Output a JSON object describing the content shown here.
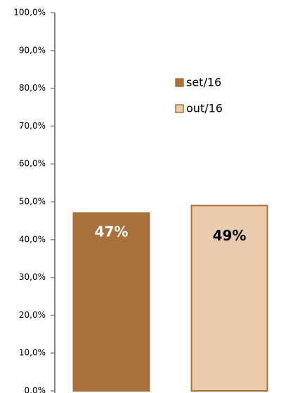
{
  "chart_data": {
    "type": "bar",
    "categories": [
      null
    ],
    "series": [
      {
        "name": "set/16",
        "color": "#a8703a",
        "edgecolor": "#a8703a",
        "label_color": "#ffffff",
        "values": [
          47
        ],
        "value_labels": [
          "47%"
        ]
      },
      {
        "name": "out/16",
        "color": "#eacbae",
        "edgecolor": "#a8703a",
        "label_color": "#000000",
        "values": [
          49
        ],
        "value_labels": [
          "49%"
        ]
      }
    ],
    "ylim": [
      0,
      100
    ],
    "yticks": [
      {
        "value": 0,
        "label": "0,0%"
      },
      {
        "value": 10,
        "label": "10,0%"
      },
      {
        "value": 20,
        "label": "20,0%"
      },
      {
        "value": 30,
        "label": "30,0%"
      },
      {
        "value": 40,
        "label": "40,0%"
      },
      {
        "value": 50,
        "label": "50,0%"
      },
      {
        "value": 60,
        "label": "60,0%"
      },
      {
        "value": 70,
        "label": "70,0%"
      },
      {
        "value": 80,
        "label": "80,0%"
      },
      {
        "value": 90,
        "label": "90,0%"
      },
      {
        "value": 100,
        "label": "100,0%"
      }
    ],
    "grid": false,
    "legend": "upper right"
  }
}
